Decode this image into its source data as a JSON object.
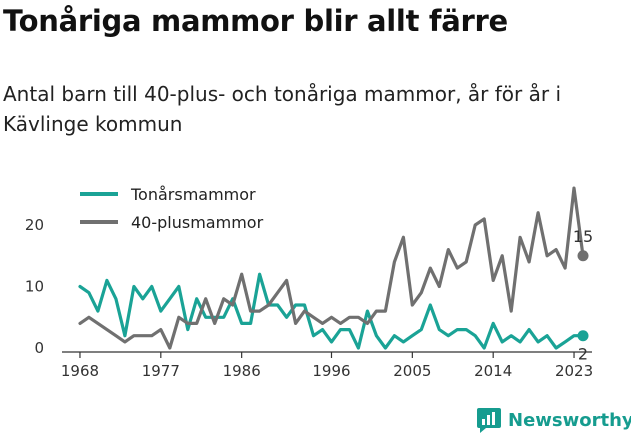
{
  "title": "Tonåriga mammor blir allt färre",
  "subtitle": "Antal barn till 40-plus- och tonåriga mammor, år för år i Kävlinge kommun",
  "brand": "Newsworthy",
  "colors": {
    "teen": "#1aa396",
    "forty": "#707070",
    "brand": "#169c8f"
  },
  "chart_data": {
    "type": "line",
    "title": "Tonåriga mammor blir allt färre",
    "subtitle": "Antal barn till 40-plus- och tonåriga mammor, år för år i Kävlinge kommun",
    "x_ticks": [
      "1968",
      "1977",
      "1986",
      "1996",
      "2005",
      "2014",
      "2023"
    ],
    "y_ticks": [
      "0",
      "10",
      "20"
    ],
    "xlim": [
      1966,
      2025
    ],
    "ylim": [
      0,
      27
    ],
    "grid": false,
    "legend": "top-left",
    "x": [
      1968,
      1969,
      1970,
      1971,
      1972,
      1973,
      1974,
      1975,
      1976,
      1977,
      1978,
      1979,
      1980,
      1981,
      1982,
      1983,
      1984,
      1985,
      1986,
      1987,
      1988,
      1989,
      1990,
      1991,
      1992,
      1993,
      1994,
      1995,
      1996,
      1997,
      1998,
      1999,
      2000,
      2001,
      2002,
      2003,
      2004,
      2005,
      2006,
      2007,
      2008,
      2009,
      2010,
      2011,
      2012,
      2013,
      2014,
      2015,
      2016,
      2017,
      2018,
      2019,
      2020,
      2021,
      2022,
      2023,
      2024
    ],
    "series": [
      {
        "name": "Tonårsmammor",
        "color": "#1aa396",
        "values": [
          10,
          9,
          6,
          11,
          8,
          2,
          10,
          8,
          10,
          6,
          8,
          10,
          3,
          8,
          5,
          5,
          5,
          8,
          4,
          4,
          12,
          7,
          7,
          5,
          7,
          7,
          2,
          3,
          1,
          3,
          3,
          0,
          6,
          2,
          0,
          2,
          1,
          2,
          3,
          7,
          3,
          2,
          3,
          3,
          2,
          0,
          4,
          1,
          2,
          1,
          3,
          1,
          2,
          0,
          1,
          2,
          2
        ]
      },
      {
        "name": "40-plusmammor",
        "color": "#707070",
        "values": [
          4,
          5,
          4,
          3,
          2,
          1,
          2,
          2,
          2,
          3,
          0,
          5,
          4,
          4,
          8,
          4,
          8,
          7,
          12,
          6,
          6,
          7,
          9,
          11,
          4,
          6,
          5,
          4,
          5,
          4,
          5,
          5,
          4,
          6,
          6,
          14,
          18,
          7,
          9,
          13,
          10,
          16,
          13,
          14,
          20,
          21,
          11,
          15,
          6,
          18,
          14,
          22,
          15,
          16,
          13,
          26,
          15
        ]
      }
    ],
    "end_labels": [
      "2",
      "15"
    ]
  }
}
